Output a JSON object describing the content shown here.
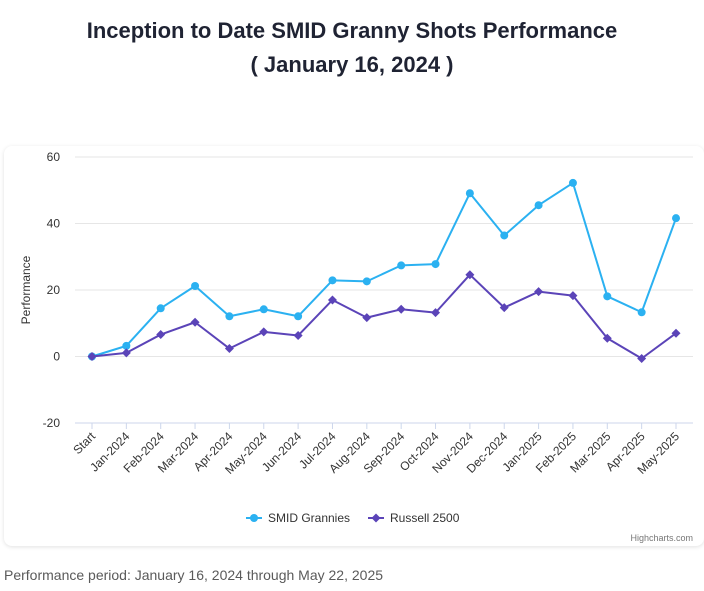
{
  "header": {
    "title_line1": "Inception to Date SMID Granny Shots Performance",
    "title_line2": "( January 16, 2024 )"
  },
  "footnote": "Performance period: January 16, 2024 through May 22, 2025",
  "credits": "Highcharts.com",
  "colors": {
    "smid": "#2bb1f1",
    "russell": "#5b44b8",
    "grid": "#e6e6e6"
  },
  "chart_data": {
    "type": "line",
    "title": "Inception to Date SMID Granny Shots Performance",
    "subtitle": "( January 16, 2024 )",
    "ylabel": "Performance",
    "xlabel": "",
    "ylim": [
      -20,
      60
    ],
    "yticks": [
      -20,
      0,
      20,
      40,
      60
    ],
    "grid": true,
    "legend": "bottom-center",
    "categories": [
      "Start",
      "Jan-2024",
      "Feb-2024",
      "Mar-2024",
      "Apr-2024",
      "May-2024",
      "Jun-2024",
      "Jul-2024",
      "Aug-2024",
      "Sep-2024",
      "Oct-2024",
      "Nov-2024",
      "Dec-2024",
      "Jan-2025",
      "Feb-2025",
      "Mar-2025",
      "Apr-2025",
      "May-2025"
    ],
    "series": [
      {
        "name": "SMID Grannies",
        "marker": "circle",
        "values": [
          0,
          3.2,
          14.5,
          21.2,
          12.1,
          14.2,
          12.1,
          22.9,
          22.6,
          27.4,
          27.8,
          49.1,
          36.4,
          45.5,
          52.2,
          18.1,
          13.3,
          41.6
        ]
      },
      {
        "name": "Russell 2500",
        "marker": "diamond",
        "values": [
          0,
          1.1,
          6.6,
          10.3,
          2.4,
          7.4,
          6.3,
          17.0,
          11.7,
          14.2,
          13.2,
          24.6,
          14.7,
          19.5,
          18.3,
          5.5,
          -0.6,
          7.0
        ]
      }
    ]
  }
}
